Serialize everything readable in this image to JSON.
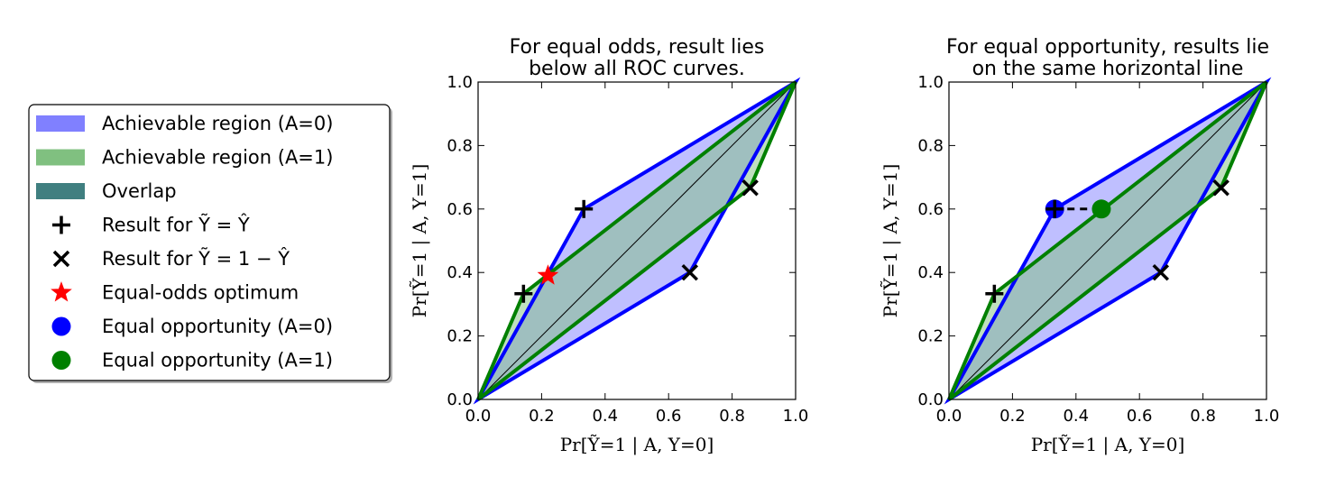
{
  "legend": {
    "entries": [
      {
        "key": "region0",
        "symbol": "patch",
        "color": "#8080ff",
        "label": "Achievable region (A=0)"
      },
      {
        "key": "region1",
        "symbol": "patch",
        "color": "#80c080",
        "label": "Achievable region (A=1)"
      },
      {
        "key": "overlap",
        "symbol": "patch",
        "color": "#407f80",
        "label": "Overlap"
      },
      {
        "key": "plus",
        "symbol": "plus",
        "color": "#000000",
        "label": "Result for Ỹ = Ŷ"
      },
      {
        "key": "cross",
        "symbol": "cross",
        "color": "#000000",
        "label": "Result for Ỹ = 1 − Ŷ"
      },
      {
        "key": "star",
        "symbol": "star",
        "color": "#ff0000",
        "label": "Equal-odds optimum"
      },
      {
        "key": "eo0",
        "symbol": "circle",
        "color": "#0000ff",
        "label": "Equal opportunity (A=0)"
      },
      {
        "key": "eo1",
        "symbol": "circle",
        "color": "#008000",
        "label": "Equal opportunity (A=1)"
      }
    ]
  },
  "chart_data": [
    {
      "type": "area",
      "title_lines": [
        "For equal odds, result lies",
        "below all ROC curves."
      ],
      "xlabel": "Pr[Ỹ=1 | A, Y=0]",
      "ylabel": "Pr[Ỹ=1 | A, Y=1]",
      "xlim": [
        0,
        1
      ],
      "ylim": [
        0,
        1
      ],
      "xticks": [
        "0.0",
        "0.2",
        "0.4",
        "0.6",
        "0.8",
        "1.0"
      ],
      "yticks": [
        "0.0",
        "0.2",
        "0.4",
        "0.6",
        "0.8",
        "1.0"
      ],
      "diagonal": [
        [
          0,
          0
        ],
        [
          1,
          1
        ]
      ],
      "series": [
        {
          "name": "Achievable region (A=0)",
          "color": "#0000ff",
          "fill": "#8080ff",
          "polygon": [
            [
              0,
              0
            ],
            [
              0.333,
              0.6
            ],
            [
              1,
              1
            ],
            [
              0.667,
              0.4
            ]
          ]
        },
        {
          "name": "Achievable region (A=1)",
          "color": "#008000",
          "fill": "#80c080",
          "polygon": [
            [
              0,
              0
            ],
            [
              0.143,
              0.333
            ],
            [
              1,
              1
            ],
            [
              0.857,
              0.667
            ]
          ]
        }
      ],
      "points": [
        {
          "symbol": "plus",
          "x": 0.333,
          "y": 0.6
        },
        {
          "symbol": "plus",
          "x": 0.143,
          "y": 0.333
        },
        {
          "symbol": "cross",
          "x": 0.667,
          "y": 0.4
        },
        {
          "symbol": "cross",
          "x": 0.857,
          "y": 0.667
        },
        {
          "symbol": "star",
          "x": 0.22,
          "y": 0.39,
          "color": "#ff0000"
        }
      ]
    },
    {
      "type": "area",
      "title_lines": [
        "For equal opportunity, results lie",
        "on the same horizontal line"
      ],
      "xlabel": "Pr[Ỹ=1 | A, Y=0]",
      "ylabel": "Pr[Ỹ=1 | A, Y=1]",
      "xlim": [
        0,
        1
      ],
      "ylim": [
        0,
        1
      ],
      "xticks": [
        "0.0",
        "0.2",
        "0.4",
        "0.6",
        "0.8",
        "1.0"
      ],
      "yticks": [
        "0.0",
        "0.2",
        "0.4",
        "0.6",
        "0.8",
        "1.0"
      ],
      "diagonal": [
        [
          0,
          0
        ],
        [
          1,
          1
        ]
      ],
      "series": [
        {
          "name": "Achievable region (A=0)",
          "color": "#0000ff",
          "fill": "#8080ff",
          "polygon": [
            [
              0,
              0
            ],
            [
              0.333,
              0.6
            ],
            [
              1,
              1
            ],
            [
              0.667,
              0.4
            ]
          ]
        },
        {
          "name": "Achievable region (A=1)",
          "color": "#008000",
          "fill": "#80c080",
          "polygon": [
            [
              0,
              0
            ],
            [
              0.143,
              0.333
            ],
            [
              1,
              1
            ],
            [
              0.857,
              0.667
            ]
          ]
        }
      ],
      "dashed_line": [
        [
          0.333,
          0.6
        ],
        [
          0.48,
          0.6
        ]
      ],
      "points": [
        {
          "symbol": "circle",
          "x": 0.333,
          "y": 0.6,
          "color": "#0000ff"
        },
        {
          "symbol": "circle",
          "x": 0.48,
          "y": 0.6,
          "color": "#008000"
        },
        {
          "symbol": "plus",
          "x": 0.333,
          "y": 0.6
        },
        {
          "symbol": "plus",
          "x": 0.143,
          "y": 0.333
        },
        {
          "symbol": "cross",
          "x": 0.667,
          "y": 0.4
        },
        {
          "symbol": "cross",
          "x": 0.857,
          "y": 0.667
        }
      ]
    }
  ]
}
